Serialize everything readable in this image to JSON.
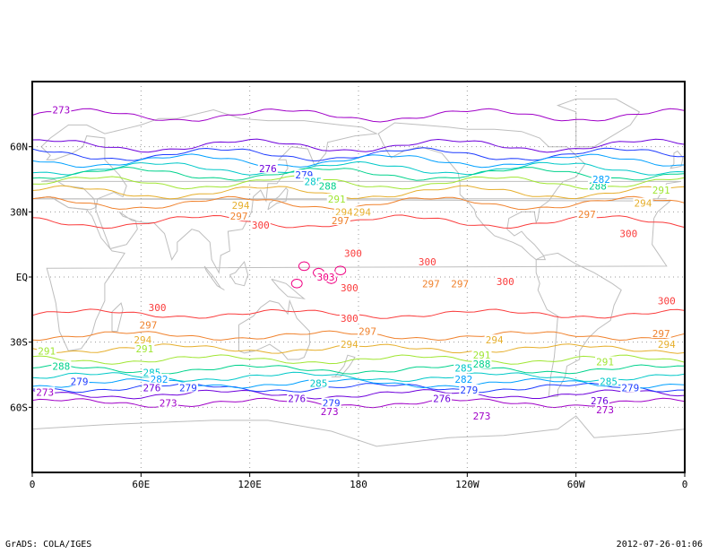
{
  "footer": {
    "left": "GrADS: COLA/IGES",
    "right": "2012-07-26-01:06"
  },
  "chart_data": {
    "type": "contour-map",
    "field_unit_hint": "K",
    "x_axis": {
      "ticks": [
        "0",
        "60E",
        "120E",
        "180",
        "120W",
        "60W",
        "0"
      ],
      "lon_values": [
        0,
        60,
        120,
        180,
        240,
        300,
        360
      ],
      "range": [
        0,
        360
      ]
    },
    "y_axis": {
      "ticks": [
        "60N",
        "30N",
        "EQ",
        "30S",
        "60S"
      ],
      "lat_values": [
        60,
        30,
        0,
        -30,
        -60
      ],
      "range": [
        -90,
        90
      ]
    },
    "grid": true,
    "colors": {
      "273": "#a000c8",
      "276": "#6e00dc",
      "279": "#1e3cff",
      "282": "#00a0ff",
      "285": "#00c8c8",
      "288": "#00d28c",
      "291": "#a0e632",
      "294": "#e6af2d",
      "297": "#f0822d",
      "300": "#fa3c3c",
      "303": "#f00082",
      "coast": "#bebebe",
      "gridline": "#999999",
      "frame": "#000000"
    },
    "contour_labels": [
      {
        "v": "273",
        "lon": 16,
        "lat": 77
      },
      {
        "v": "276",
        "lon": 130,
        "lat": 50
      },
      {
        "v": "279",
        "lon": 150,
        "lat": 47
      },
      {
        "v": "285",
        "lon": 155,
        "lat": 44
      },
      {
        "v": "288",
        "lon": 163,
        "lat": 42
      },
      {
        "v": "291",
        "lon": 168,
        "lat": 36
      },
      {
        "v": "294",
        "lon": 115,
        "lat": 33
      },
      {
        "v": "297",
        "lon": 114,
        "lat": 28
      },
      {
        "v": "294",
        "lon": 172,
        "lat": 30
      },
      {
        "v": "297",
        "lon": 170,
        "lat": 26
      },
      {
        "v": "300",
        "lon": 126,
        "lat": 24
      },
      {
        "v": "300",
        "lon": 177,
        "lat": 11
      },
      {
        "v": "303",
        "lon": 162,
        "lat": 0
      },
      {
        "v": "300",
        "lon": 218,
        "lat": 7
      },
      {
        "v": "300",
        "lon": 175,
        "lat": -5
      },
      {
        "v": "297",
        "lon": 220,
        "lat": -3
      },
      {
        "v": "300",
        "lon": 69,
        "lat": -14
      },
      {
        "v": "297",
        "lon": 64,
        "lat": -22
      },
      {
        "v": "294",
        "lon": 61,
        "lat": -29
      },
      {
        "v": "291",
        "lon": 62,
        "lat": -33
      },
      {
        "v": "291",
        "lon": 8,
        "lat": -34
      },
      {
        "v": "288",
        "lon": 16,
        "lat": -41
      },
      {
        "v": "285",
        "lon": 66,
        "lat": -44
      },
      {
        "v": "282",
        "lon": 70,
        "lat": -47
      },
      {
        "v": "279",
        "lon": 26,
        "lat": -48
      },
      {
        "v": "276",
        "lon": 66,
        "lat": -51
      },
      {
        "v": "279",
        "lon": 86,
        "lat": -51
      },
      {
        "v": "273",
        "lon": 7,
        "lat": -53
      },
      {
        "v": "273",
        "lon": 75,
        "lat": -58
      },
      {
        "v": "300",
        "lon": 175,
        "lat": -19
      },
      {
        "v": "297",
        "lon": 185,
        "lat": -25
      },
      {
        "v": "294",
        "lon": 175,
        "lat": -31
      },
      {
        "v": "285",
        "lon": 158,
        "lat": -49
      },
      {
        "v": "276",
        "lon": 146,
        "lat": -56
      },
      {
        "v": "279",
        "lon": 165,
        "lat": -58
      },
      {
        "v": "273",
        "lon": 164,
        "lat": -62
      },
      {
        "v": "291",
        "lon": 248,
        "lat": -36
      },
      {
        "v": "288",
        "lon": 248,
        "lat": -40
      },
      {
        "v": "294",
        "lon": 255,
        "lat": -29
      },
      {
        "v": "285",
        "lon": 238,
        "lat": -42
      },
      {
        "v": "282",
        "lon": 238,
        "lat": -47
      },
      {
        "v": "279",
        "lon": 241,
        "lat": -52
      },
      {
        "v": "276",
        "lon": 226,
        "lat": -56
      },
      {
        "v": "273",
        "lon": 248,
        "lat": -64
      },
      {
        "v": "300",
        "lon": 329,
        "lat": 20
      },
      {
        "v": "297",
        "lon": 306,
        "lat": 29
      },
      {
        "v": "294",
        "lon": 337,
        "lat": 34
      },
      {
        "v": "291",
        "lon": 347,
        "lat": 40
      },
      {
        "v": "288",
        "lon": 312,
        "lat": 42
      },
      {
        "v": "282",
        "lon": 314,
        "lat": 45
      },
      {
        "v": "300",
        "lon": 350,
        "lat": -11
      },
      {
        "v": "297",
        "lon": 347,
        "lat": -26
      },
      {
        "v": "294",
        "lon": 350,
        "lat": -31
      },
      {
        "v": "291",
        "lon": 316,
        "lat": -39
      },
      {
        "v": "285",
        "lon": 318,
        "lat": -48
      },
      {
        "v": "279",
        "lon": 330,
        "lat": -51
      },
      {
        "v": "276",
        "lon": 313,
        "lat": -57
      },
      {
        "v": "273",
        "lon": 316,
        "lat": -61
      },
      {
        "v": "300",
        "lon": 261,
        "lat": -2
      },
      {
        "v": "297",
        "lon": 236,
        "lat": -3
      },
      {
        "v": "294",
        "lon": 182,
        "lat": 30
      }
    ]
  }
}
